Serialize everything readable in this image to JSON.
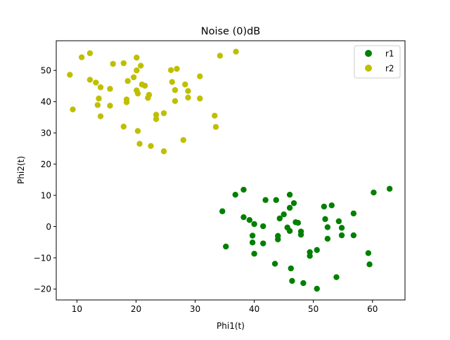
{
  "chart_data": {
    "type": "scatter",
    "title": "Noise (0)dB",
    "xlabel": "Phi1(t)",
    "ylabel": "Phi2(t)",
    "xlim": [
      6.5,
      65.5
    ],
    "ylim": [
      -23.5,
      59.5
    ],
    "xticks": [
      10,
      20,
      30,
      40,
      50,
      60
    ],
    "yticks": [
      -20,
      -10,
      0,
      10,
      20,
      30,
      40,
      50
    ],
    "grid": false,
    "legend_position": "top-right",
    "series": [
      {
        "name": "r1",
        "color": "#008000",
        "points": [
          [
            34.6,
            4.9
          ],
          [
            35.2,
            -6.4
          ],
          [
            36.8,
            10.2
          ],
          [
            38.2,
            11.8
          ],
          [
            38.2,
            3.0
          ],
          [
            39.2,
            2.1
          ],
          [
            39.7,
            -2.9
          ],
          [
            39.7,
            -5.1
          ],
          [
            40.0,
            0.8
          ],
          [
            40.0,
            -8.7
          ],
          [
            41.5,
            0.1
          ],
          [
            41.5,
            -5.4
          ],
          [
            41.9,
            8.5
          ],
          [
            43.7,
            8.5
          ],
          [
            43.5,
            -11.9
          ],
          [
            44.0,
            -3.0
          ],
          [
            44.0,
            -4.1
          ],
          [
            44.3,
            2.6
          ],
          [
            45.0,
            3.9
          ],
          [
            45.6,
            -0.3
          ],
          [
            46.0,
            10.2
          ],
          [
            46.0,
            6.0
          ],
          [
            46.0,
            -1.4
          ],
          [
            46.2,
            -13.4
          ],
          [
            46.4,
            -17.4
          ],
          [
            46.7,
            7.5
          ],
          [
            47.0,
            1.4
          ],
          [
            47.4,
            1.2
          ],
          [
            47.9,
            -1.6
          ],
          [
            47.9,
            -2.6
          ],
          [
            48.3,
            -18.1
          ],
          [
            49.4,
            -8.2
          ],
          [
            49.4,
            -9.4
          ],
          [
            50.6,
            -7.5
          ],
          [
            50.6,
            -19.9
          ],
          [
            51.8,
            6.4
          ],
          [
            52.0,
            2.4
          ],
          [
            52.4,
            -3.9
          ],
          [
            52.4,
            -0.2
          ],
          [
            53.1,
            6.8
          ],
          [
            53.9,
            -16.2
          ],
          [
            54.3,
            1.7
          ],
          [
            54.8,
            -2.8
          ],
          [
            54.8,
            -0.4
          ],
          [
            56.8,
            4.2
          ],
          [
            56.8,
            -2.8
          ],
          [
            59.3,
            -8.5
          ],
          [
            59.5,
            -12.1
          ],
          [
            60.2,
            10.9
          ],
          [
            62.9,
            12.1
          ]
        ]
      },
      {
        "name": "r2",
        "color": "#bfbf00",
        "points": [
          [
            8.8,
            48.6
          ],
          [
            9.3,
            37.5
          ],
          [
            10.8,
            54.2
          ],
          [
            12.2,
            55.5
          ],
          [
            12.2,
            47.0
          ],
          [
            13.2,
            46.1
          ],
          [
            13.5,
            38.9
          ],
          [
            13.7,
            41.0
          ],
          [
            14.0,
            44.6
          ],
          [
            14.0,
            35.3
          ],
          [
            15.6,
            44.1
          ],
          [
            15.6,
            38.7
          ],
          [
            16.1,
            52.1
          ],
          [
            17.9,
            52.3
          ],
          [
            17.9,
            32.0
          ],
          [
            18.4,
            40.7
          ],
          [
            18.4,
            39.8
          ],
          [
            18.6,
            46.6
          ],
          [
            19.6,
            47.8
          ],
          [
            20.1,
            43.6
          ],
          [
            20.1,
            54.1
          ],
          [
            20.1,
            50.0
          ],
          [
            20.3,
            42.6
          ],
          [
            20.3,
            30.6
          ],
          [
            20.6,
            26.5
          ],
          [
            20.8,
            51.5
          ],
          [
            21.0,
            45.5
          ],
          [
            21.5,
            45.1
          ],
          [
            22.0,
            41.2
          ],
          [
            22.2,
            42.2
          ],
          [
            22.5,
            25.8
          ],
          [
            23.4,
            35.8
          ],
          [
            23.4,
            34.4
          ],
          [
            24.7,
            36.3
          ],
          [
            24.7,
            24.1
          ],
          [
            25.9,
            50.1
          ],
          [
            26.1,
            46.3
          ],
          [
            26.6,
            40.2
          ],
          [
            26.6,
            43.7
          ],
          [
            26.9,
            50.5
          ],
          [
            28.0,
            27.7
          ],
          [
            28.3,
            45.5
          ],
          [
            28.8,
            41.3
          ],
          [
            28.8,
            43.4
          ],
          [
            30.8,
            48.1
          ],
          [
            30.8,
            41.0
          ],
          [
            33.3,
            35.5
          ],
          [
            33.5,
            31.9
          ],
          [
            34.2,
            54.7
          ],
          [
            36.9,
            56.0
          ]
        ]
      }
    ]
  }
}
